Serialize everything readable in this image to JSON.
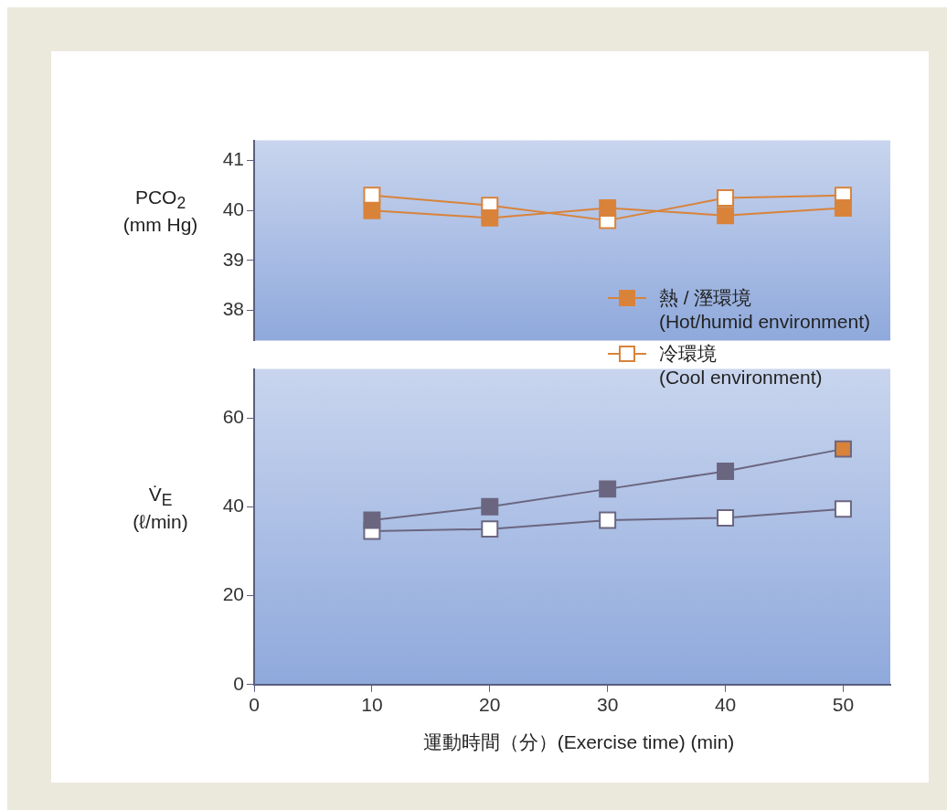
{
  "chart_data": [
    {
      "type": "line",
      "ylabel": "PCO$_{2}$\n(mm Hg)",
      "x": [
        10,
        20,
        30,
        40,
        50
      ],
      "xlim": [
        0,
        54
      ],
      "xticks": [
        0,
        10,
        20,
        30,
        40,
        50
      ],
      "ylim": [
        37.4,
        41.4
      ],
      "yticks": [
        38,
        39,
        40,
        41
      ],
      "tick_labels": "y",
      "grid": false,
      "marker": "square",
      "legend": "bottom right",
      "series": [
        {
          "name": "熱 / 溼環境\n(Hot/humid environment)",
          "color": "#d9833a",
          "colors": [
            "#d9833a",
            "#d9833a",
            "#d9833a",
            "#d9833a",
            "#d9833a"
          ],
          "values": [
            40.0,
            39.85,
            40.05,
            39.9,
            40.05
          ]
        },
        {
          "name": "冷環境\n(Cool environment)",
          "color": "#d9833a",
          "colors": [
            "#ffffff",
            "#ffffff",
            "#ffffff",
            "#ffffff",
            "#ffffff"
          ],
          "values": [
            40.3,
            40.1,
            39.8,
            40.25,
            40.3
          ]
        }
      ]
    },
    {
      "type": "line",
      "ylabel": "V̇$_{E}$\n(ℓ/min)",
      "xlabel": "運動時間（分）(Exercise time) (min)",
      "x": [
        10,
        20,
        30,
        40,
        50
      ],
      "xlim": [
        0,
        54
      ],
      "xticks": [
        0,
        10,
        20,
        30,
        40,
        50
      ],
      "ylim": [
        0,
        71
      ],
      "yticks": [
        0,
        20,
        40,
        60
      ],
      "grid": false,
      "marker": "square",
      "series": [
        {
          "color": "#6b6680",
          "colors": [
            "#6b6680",
            "#6b6680",
            "#6b6680",
            "#6b6680",
            "#d9833a"
          ],
          "values": [
            37,
            40,
            44,
            48,
            53
          ]
        },
        {
          "color": "#6b6680",
          "colors": [
            "#ffffff",
            "#ffffff",
            "#ffffff",
            "#ffffff",
            "#ffffff"
          ],
          "values": [
            34.5,
            35,
            37,
            37.5,
            39.5
          ]
        }
      ]
    }
  ]
}
